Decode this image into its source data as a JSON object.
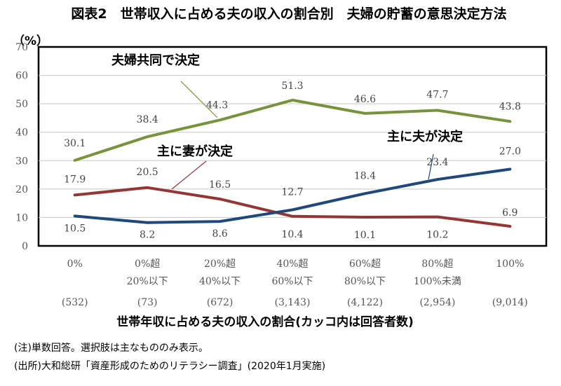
{
  "chart_data": {
    "type": "line",
    "title": "図表2　世帯収入に占める夫の収入の割合別　夫婦の貯蓄の意思決定方法",
    "y_unit": "（%）",
    "xlabel": "世帯年収に占める夫の収入の割合(カッコ内は回答者数)",
    "ylabel": "",
    "ylim": [
      0,
      70
    ],
    "yticks": [
      "0",
      "10",
      "20",
      "30",
      "40",
      "50",
      "60",
      "70"
    ],
    "categories": [
      {
        "line1": "0%",
        "line2": "",
        "n": "(532)"
      },
      {
        "line1": "0%超",
        "line2": "20%以下",
        "n": "(73)"
      },
      {
        "line1": "20%超",
        "line2": "40%以下",
        "n": "(672)"
      },
      {
        "line1": "40%超",
        "line2": "60%以下",
        "n": "(3,143)"
      },
      {
        "line1": "60%超",
        "line2": "80%以下",
        "n": "(4,122)"
      },
      {
        "line1": "80%超",
        "line2": "100%未満",
        "n": "(2,954)"
      },
      {
        "line1": "100%",
        "line2": "",
        "n": "(9,014)"
      }
    ],
    "series": [
      {
        "name": "夫婦共同で決定",
        "color": "#77933c",
        "values": [
          30.1,
          38.4,
          44.3,
          51.3,
          46.6,
          47.7,
          43.8
        ],
        "labels": [
          "30.1",
          "38.4",
          "44.3",
          "51.3",
          "46.6",
          "47.7",
          "43.8"
        ]
      },
      {
        "name": "主に妻が決定",
        "color": "#943634",
        "values": [
          17.9,
          20.5,
          16.5,
          10.4,
          10.1,
          10.2,
          6.9
        ],
        "labels": [
          "17.9",
          "20.5",
          "16.5",
          "10.4",
          "10.1",
          "10.2",
          "6.9"
        ]
      },
      {
        "name": "主に夫が決定",
        "color": "#1f497d",
        "values": [
          10.5,
          8.2,
          8.6,
          12.7,
          18.4,
          23.4,
          27.0
        ],
        "labels": [
          "10.5",
          "8.2",
          "8.6",
          "12.7",
          "18.4",
          "23.4",
          "27.0"
        ]
      }
    ],
    "grid": true,
    "legend": "inline"
  },
  "notes": {
    "note1": "(注)単数回答。選択肢は主なもののみ表示。",
    "note2": "(出所)大和総研「資産形成のためのリテラシー調査」(2020年1月実施)"
  }
}
